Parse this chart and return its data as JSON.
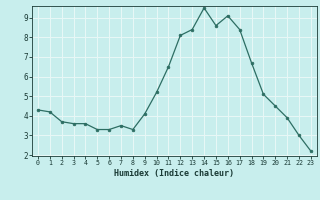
{
  "x": [
    0,
    1,
    2,
    3,
    4,
    5,
    6,
    7,
    8,
    9,
    10,
    11,
    12,
    13,
    14,
    15,
    16,
    17,
    18,
    19,
    20,
    21,
    22,
    23
  ],
  "y": [
    4.3,
    4.2,
    3.7,
    3.6,
    3.6,
    3.3,
    3.3,
    3.5,
    3.3,
    4.1,
    5.2,
    6.5,
    8.1,
    8.4,
    9.5,
    8.6,
    9.1,
    8.4,
    6.7,
    5.1,
    4.5,
    3.9,
    3.0,
    2.2
  ],
  "xlabel": "Humidex (Indice chaleur)",
  "ylim": [
    2,
    9.6
  ],
  "xlim": [
    -0.5,
    23.5
  ],
  "bg_color": "#c8eeed",
  "line_color": "#2d6e63",
  "marker_color": "#2d6e63",
  "grid_color": "#e8f8f7",
  "axis_label_color": "#1a3a35",
  "tick_color": "#1a3a35",
  "yticks": [
    2,
    3,
    4,
    5,
    6,
    7,
    8,
    9
  ],
  "xticks": [
    0,
    1,
    2,
    3,
    4,
    5,
    6,
    7,
    8,
    9,
    10,
    11,
    12,
    13,
    14,
    15,
    16,
    17,
    18,
    19,
    20,
    21,
    22,
    23
  ]
}
